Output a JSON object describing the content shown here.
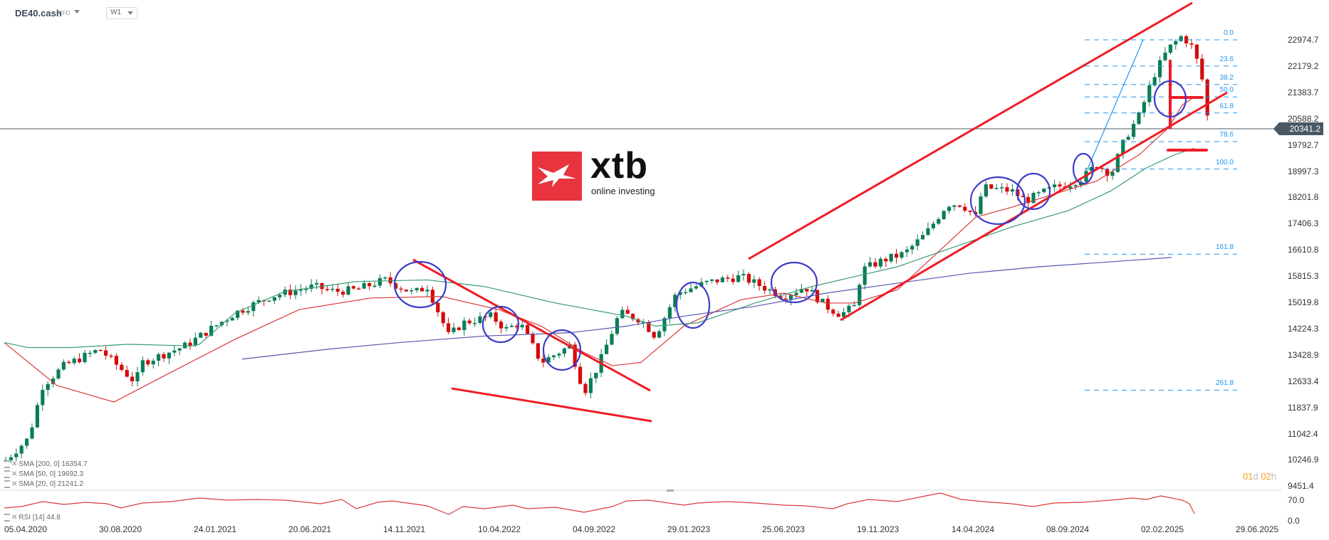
{
  "header": {
    "symbol": "DE40.cash",
    "symbol_type": "CFD",
    "timeframe": "W1"
  },
  "logo": {
    "brand": "xtb",
    "tagline": "online investing"
  },
  "price_axis": {
    "ticks": [
      "22974.7",
      "22179.2",
      "21383.7",
      "20588.2",
      "19792.7",
      "18997.3",
      "18201.8",
      "17406.3",
      "16610.8",
      "15815.3",
      "15019.8",
      "14224.3",
      "13428.9",
      "12633.4",
      "11837.9",
      "11042.4",
      "10246.9",
      "9451.4"
    ],
    "current_price": "20341.2"
  },
  "rsi_axis": {
    "ticks": [
      "70.0",
      "0.0"
    ]
  },
  "countdown": {
    "d_value": "01",
    "d_unit": "d",
    "h_value": "02",
    "h_unit": "h"
  },
  "legend": {
    "sma200": "SMA [200,  0] 16354.7",
    "sma50": "SMA [50,  0] 19692.3",
    "sma20": "SMA [20,  0] 21241.2",
    "rsi": "RSI [14] 44.8"
  },
  "x_axis": {
    "labels": [
      "05.04.2020",
      "30.08.2020",
      "24.01.2021",
      "20.06.2021",
      "14.11.2021",
      "10.04.2022",
      "04.09.2022",
      "29.01.2023",
      "25.06.2023",
      "19.11.2023",
      "14.04.2024",
      "08.09.2024",
      "02.02.2025",
      "29.06.2025"
    ]
  },
  "fib_levels": [
    {
      "label": "0.0",
      "price": 22974.7
    },
    {
      "label": "23.6",
      "price": 22179.2
    },
    {
      "label": "38.2",
      "price": 21621
    },
    {
      "label": "50.0",
      "price": 21244
    },
    {
      "label": "61.8",
      "price": 20760
    },
    {
      "label": "78.6",
      "price": 19890
    },
    {
      "label": "100.0",
      "price": 19060
    },
    {
      "label": "161.8",
      "price": 16480
    },
    {
      "label": "261.8",
      "price": 12360
    }
  ],
  "colors": {
    "up": "#0a7e56",
    "down": "#d40b0b",
    "sma20": "#d93b3b",
    "sma50": "#3a9a73",
    "sma200": "#5559b0",
    "trendline": "#ee1c25",
    "circle": "#3c3cc8",
    "fib": "#2196f3",
    "rsi": "#d93b3b"
  },
  "chart_data": {
    "type": "candlestick",
    "title": "DE40.cash CFD W1",
    "xlabel": "",
    "ylabel": "",
    "ylim": [
      9451.4,
      23500
    ],
    "x_range": [
      "05.04.2020",
      "29.06.2025"
    ],
    "current_price": 20341.2,
    "series": [
      {
        "name": "SMA [200, 0]",
        "last": 16354.7
      },
      {
        "name": "SMA [50, 0]",
        "last": 19692.3
      },
      {
        "name": "SMA [20, 0]",
        "last": 21241.2
      },
      {
        "name": "RSI [14]",
        "last": 44.8
      }
    ],
    "close_path_approx": {
      "dates": [
        "05.04.2020",
        "30.08.2020",
        "24.01.2021",
        "20.06.2021",
        "14.11.2021",
        "10.04.2022",
        "04.09.2022",
        "29.01.2023",
        "25.06.2023",
        "19.11.2023",
        "14.04.2024",
        "08.09.2024",
        "02.02.2025",
        "16.03.2025"
      ],
      "values": [
        10300,
        13000,
        13800,
        15600,
        16100,
        14300,
        12800,
        15100,
        16000,
        15200,
        18000,
        18700,
        21700,
        20341
      ]
    },
    "annotations": [
      "Descending channel 2021-2022",
      "Ascending channel 2023-2025",
      "Fibonacci retracement 0.0-261.8",
      "Support marked at ~21241 (SMA20) and ~19692 (SMA50)"
    ],
    "legend_position": "bottom-left",
    "grid": false
  }
}
